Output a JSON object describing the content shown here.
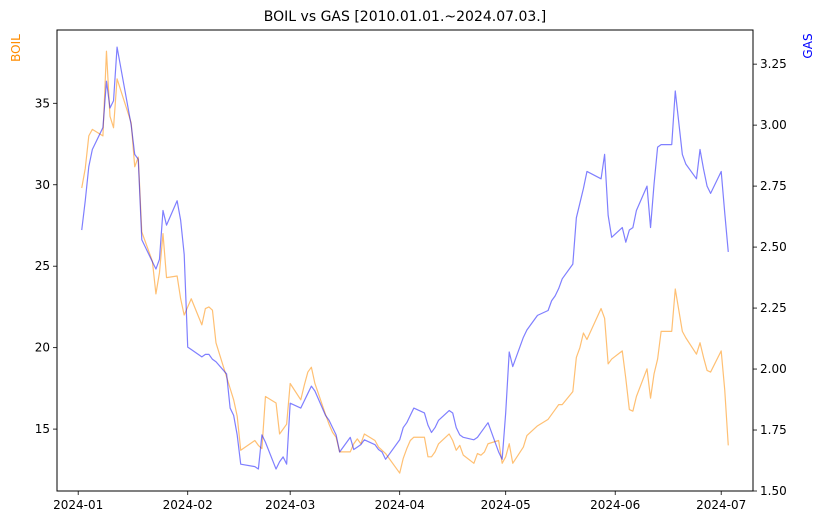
{
  "chart_data": {
    "type": "line",
    "title": "BOIL vs GAS [2010.01.01.~2024.07.03.]",
    "xlabel": "",
    "x_ticks": [
      "2024-01",
      "2024-02",
      "2024-03",
      "2024-04",
      "2024-05",
      "2024-06",
      "2024-07"
    ],
    "left_axis": {
      "label": "BOIL",
      "color": "#ff8c00",
      "ylim": [
        11.2,
        39.5
      ],
      "ticks": [
        15,
        20,
        25,
        30,
        35
      ]
    },
    "right_axis": {
      "label": "GAS",
      "color": "#0000ff",
      "ylim": [
        1.5,
        3.39
      ],
      "ticks": [
        "1.50",
        "1.75",
        "2.00",
        "2.25",
        "2.50",
        "2.75",
        "3.00",
        "3.25"
      ]
    },
    "legend": "none",
    "grid": false,
    "series": [
      {
        "name": "BOIL",
        "axis": "left",
        "color": "#ff8c00",
        "points": [
          [
            "2024-01-02",
            29.8
          ],
          [
            "2024-01-03",
            31.0
          ],
          [
            "2024-01-04",
            33.0
          ],
          [
            "2024-01-05",
            33.4
          ],
          [
            "2024-01-08",
            33.0
          ],
          [
            "2024-01-09",
            38.2
          ],
          [
            "2024-01-10",
            34.2
          ],
          [
            "2024-01-11",
            33.5
          ],
          [
            "2024-01-12",
            36.5
          ],
          [
            "2024-01-16",
            33.8
          ],
          [
            "2024-01-17",
            31.1
          ],
          [
            "2024-01-18",
            31.7
          ],
          [
            "2024-01-19",
            27.1
          ],
          [
            "2024-01-22",
            25.3
          ],
          [
            "2024-01-23",
            23.3
          ],
          [
            "2024-01-24",
            24.6
          ],
          [
            "2024-01-25",
            27.0
          ],
          [
            "2024-01-26",
            24.3
          ],
          [
            "2024-01-29",
            24.4
          ],
          [
            "2024-01-30",
            23.0
          ],
          [
            "2024-01-31",
            22.0
          ],
          [
            "2024-02-01",
            22.5
          ],
          [
            "2024-02-02",
            23.0
          ],
          [
            "2024-02-05",
            21.4
          ],
          [
            "2024-02-06",
            22.4
          ],
          [
            "2024-02-07",
            22.5
          ],
          [
            "2024-02-08",
            22.3
          ],
          [
            "2024-02-09",
            20.3
          ],
          [
            "2024-02-12",
            18.2
          ],
          [
            "2024-02-13",
            17.5
          ],
          [
            "2024-02-14",
            16.8
          ],
          [
            "2024-02-15",
            15.8
          ],
          [
            "2024-02-16",
            13.7
          ],
          [
            "2024-02-20",
            14.3
          ],
          [
            "2024-02-21",
            14.0
          ],
          [
            "2024-02-22",
            13.8
          ],
          [
            "2024-02-23",
            17.0
          ],
          [
            "2024-02-26",
            16.6
          ],
          [
            "2024-02-27",
            14.7
          ],
          [
            "2024-02-28",
            15.0
          ],
          [
            "2024-02-29",
            15.3
          ],
          [
            "2024-03-01",
            17.8
          ],
          [
            "2024-03-04",
            16.8
          ],
          [
            "2024-03-05",
            17.7
          ],
          [
            "2024-03-06",
            18.5
          ],
          [
            "2024-03-07",
            18.8
          ],
          [
            "2024-03-08",
            17.8
          ],
          [
            "2024-03-11",
            15.9
          ],
          [
            "2024-03-12",
            15.3
          ],
          [
            "2024-03-13",
            14.8
          ],
          [
            "2024-03-14",
            14.5
          ],
          [
            "2024-03-15",
            13.6
          ],
          [
            "2024-03-18",
            13.6
          ],
          [
            "2024-03-19",
            14.1
          ],
          [
            "2024-03-20",
            14.4
          ],
          [
            "2024-03-21",
            14.1
          ],
          [
            "2024-03-22",
            14.7
          ],
          [
            "2024-03-25",
            14.3
          ],
          [
            "2024-03-26",
            13.9
          ],
          [
            "2024-03-27",
            13.7
          ],
          [
            "2024-03-28",
            13.5
          ],
          [
            "2024-04-01",
            12.3
          ],
          [
            "2024-04-02",
            13.2
          ],
          [
            "2024-04-03",
            13.8
          ],
          [
            "2024-04-04",
            14.3
          ],
          [
            "2024-04-05",
            14.5
          ],
          [
            "2024-04-08",
            14.5
          ],
          [
            "2024-04-09",
            13.3
          ],
          [
            "2024-04-10",
            13.3
          ],
          [
            "2024-04-11",
            13.6
          ],
          [
            "2024-04-12",
            14.1
          ],
          [
            "2024-04-15",
            14.7
          ],
          [
            "2024-04-16",
            14.3
          ],
          [
            "2024-04-17",
            13.7
          ],
          [
            "2024-04-18",
            14.0
          ],
          [
            "2024-04-19",
            13.4
          ],
          [
            "2024-04-22",
            12.9
          ],
          [
            "2024-04-23",
            13.5
          ],
          [
            "2024-04-24",
            13.4
          ],
          [
            "2024-04-25",
            13.6
          ],
          [
            "2024-04-26",
            14.1
          ],
          [
            "2024-04-29",
            14.3
          ],
          [
            "2024-04-30",
            12.9
          ],
          [
            "2024-05-01",
            13.3
          ],
          [
            "2024-05-02",
            14.1
          ],
          [
            "2024-05-03",
            12.9
          ],
          [
            "2024-05-06",
            13.9
          ],
          [
            "2024-05-07",
            14.6
          ],
          [
            "2024-05-08",
            14.8
          ],
          [
            "2024-05-09",
            15.0
          ],
          [
            "2024-05-10",
            15.2
          ],
          [
            "2024-05-13",
            15.6
          ],
          [
            "2024-05-14",
            15.9
          ],
          [
            "2024-05-15",
            16.2
          ],
          [
            "2024-05-16",
            16.5
          ],
          [
            "2024-05-17",
            16.5
          ],
          [
            "2024-05-20",
            17.3
          ],
          [
            "2024-05-21",
            19.4
          ],
          [
            "2024-05-22",
            20.0
          ],
          [
            "2024-05-23",
            20.9
          ],
          [
            "2024-05-24",
            20.5
          ],
          [
            "2024-05-28",
            22.4
          ],
          [
            "2024-05-29",
            21.8
          ],
          [
            "2024-05-30",
            19.0
          ],
          [
            "2024-05-31",
            19.3
          ],
          [
            "2024-06-03",
            19.8
          ],
          [
            "2024-06-04",
            18.1
          ],
          [
            "2024-06-05",
            16.2
          ],
          [
            "2024-06-06",
            16.1
          ],
          [
            "2024-06-07",
            17.0
          ],
          [
            "2024-06-10",
            18.7
          ],
          [
            "2024-06-11",
            16.9
          ],
          [
            "2024-06-12",
            18.4
          ],
          [
            "2024-06-13",
            19.3
          ],
          [
            "2024-06-14",
            21.0
          ],
          [
            "2024-06-17",
            21.0
          ],
          [
            "2024-06-18",
            23.6
          ],
          [
            "2024-06-20",
            21.0
          ],
          [
            "2024-06-21",
            20.6
          ],
          [
            "2024-06-24",
            19.6
          ],
          [
            "2024-06-25",
            20.3
          ],
          [
            "2024-06-26",
            19.4
          ],
          [
            "2024-06-27",
            18.6
          ],
          [
            "2024-06-28",
            18.5
          ],
          [
            "2024-07-01",
            19.8
          ],
          [
            "2024-07-02",
            17.4
          ],
          [
            "2024-07-03",
            14.0
          ]
        ]
      },
      {
        "name": "GAS",
        "axis": "right",
        "color": "#0000ff",
        "points": [
          [
            "2024-01-02",
            2.57
          ],
          [
            "2024-01-03",
            2.69
          ],
          [
            "2024-01-04",
            2.83
          ],
          [
            "2024-01-05",
            2.9
          ],
          [
            "2024-01-08",
            2.99
          ],
          [
            "2024-01-09",
            3.18
          ],
          [
            "2024-01-10",
            3.07
          ],
          [
            "2024-01-11",
            3.1
          ],
          [
            "2024-01-12",
            3.32
          ],
          [
            "2024-01-16",
            3.0
          ],
          [
            "2024-01-17",
            2.88
          ],
          [
            "2024-01-18",
            2.86
          ],
          [
            "2024-01-19",
            2.53
          ],
          [
            "2024-01-22",
            2.44
          ],
          [
            "2024-01-23",
            2.41
          ],
          [
            "2024-01-24",
            2.45
          ],
          [
            "2024-01-25",
            2.65
          ],
          [
            "2024-01-26",
            2.59
          ],
          [
            "2024-01-29",
            2.69
          ],
          [
            "2024-01-30",
            2.61
          ],
          [
            "2024-01-31",
            2.47
          ],
          [
            "2024-02-01",
            2.09
          ],
          [
            "2024-02-02",
            2.08
          ],
          [
            "2024-02-05",
            2.05
          ],
          [
            "2024-02-06",
            2.06
          ],
          [
            "2024-02-07",
            2.06
          ],
          [
            "2024-02-08",
            2.04
          ],
          [
            "2024-02-09",
            2.03
          ],
          [
            "2024-02-12",
            1.98
          ],
          [
            "2024-02-13",
            1.84
          ],
          [
            "2024-02-14",
            1.81
          ],
          [
            "2024-02-15",
            1.73
          ],
          [
            "2024-02-16",
            1.61
          ],
          [
            "2024-02-20",
            1.6
          ],
          [
            "2024-02-21",
            1.59
          ],
          [
            "2024-02-22",
            1.73
          ],
          [
            "2024-02-23",
            1.7
          ],
          [
            "2024-02-26",
            1.59
          ],
          [
            "2024-02-27",
            1.62
          ],
          [
            "2024-02-28",
            1.64
          ],
          [
            "2024-02-29",
            1.61
          ],
          [
            "2024-03-01",
            1.86
          ],
          [
            "2024-03-04",
            1.84
          ],
          [
            "2024-03-05",
            1.87
          ],
          [
            "2024-03-06",
            1.9
          ],
          [
            "2024-03-07",
            1.93
          ],
          [
            "2024-03-08",
            1.91
          ],
          [
            "2024-03-11",
            1.81
          ],
          [
            "2024-03-12",
            1.79
          ],
          [
            "2024-03-13",
            1.76
          ],
          [
            "2024-03-14",
            1.73
          ],
          [
            "2024-03-15",
            1.66
          ],
          [
            "2024-03-18",
            1.72
          ],
          [
            "2024-03-19",
            1.67
          ],
          [
            "2024-03-20",
            1.68
          ],
          [
            "2024-03-21",
            1.69
          ],
          [
            "2024-03-22",
            1.71
          ],
          [
            "2024-03-25",
            1.69
          ],
          [
            "2024-03-26",
            1.67
          ],
          [
            "2024-03-27",
            1.66
          ],
          [
            "2024-03-28",
            1.63
          ],
          [
            "2024-04-01",
            1.71
          ],
          [
            "2024-04-02",
            1.76
          ],
          [
            "2024-04-03",
            1.78
          ],
          [
            "2024-04-04",
            1.81
          ],
          [
            "2024-04-05",
            1.84
          ],
          [
            "2024-04-08",
            1.82
          ],
          [
            "2024-04-09",
            1.77
          ],
          [
            "2024-04-10",
            1.74
          ],
          [
            "2024-04-11",
            1.76
          ],
          [
            "2024-04-12",
            1.79
          ],
          [
            "2024-04-15",
            1.83
          ],
          [
            "2024-04-16",
            1.82
          ],
          [
            "2024-04-17",
            1.76
          ],
          [
            "2024-04-18",
            1.73
          ],
          [
            "2024-04-19",
            1.72
          ],
          [
            "2024-04-22",
            1.71
          ],
          [
            "2024-04-23",
            1.72
          ],
          [
            "2024-04-24",
            1.74
          ],
          [
            "2024-04-25",
            1.76
          ],
          [
            "2024-04-26",
            1.78
          ],
          [
            "2024-04-29",
            1.66
          ],
          [
            "2024-04-30",
            1.63
          ],
          [
            "2024-05-01",
            1.82
          ],
          [
            "2024-05-02",
            2.07
          ],
          [
            "2024-05-03",
            2.01
          ],
          [
            "2024-05-06",
            2.13
          ],
          [
            "2024-05-07",
            2.16
          ],
          [
            "2024-05-08",
            2.18
          ],
          [
            "2024-05-09",
            2.2
          ],
          [
            "2024-05-10",
            2.22
          ],
          [
            "2024-05-13",
            2.24
          ],
          [
            "2024-05-14",
            2.28
          ],
          [
            "2024-05-15",
            2.3
          ],
          [
            "2024-05-16",
            2.33
          ],
          [
            "2024-05-17",
            2.37
          ],
          [
            "2024-05-20",
            2.43
          ],
          [
            "2024-05-21",
            2.62
          ],
          [
            "2024-05-22",
            2.68
          ],
          [
            "2024-05-23",
            2.74
          ],
          [
            "2024-05-24",
            2.81
          ],
          [
            "2024-05-28",
            2.78
          ],
          [
            "2024-05-29",
            2.88
          ],
          [
            "2024-05-30",
            2.63
          ],
          [
            "2024-05-31",
            2.54
          ],
          [
            "2024-06-03",
            2.58
          ],
          [
            "2024-06-04",
            2.52
          ],
          [
            "2024-06-05",
            2.57
          ],
          [
            "2024-06-06",
            2.58
          ],
          [
            "2024-06-07",
            2.65
          ],
          [
            "2024-06-10",
            2.75
          ],
          [
            "2024-06-11",
            2.58
          ],
          [
            "2024-06-12",
            2.76
          ],
          [
            "2024-06-13",
            2.91
          ],
          [
            "2024-06-14",
            2.92
          ],
          [
            "2024-06-17",
            2.92
          ],
          [
            "2024-06-18",
            3.14
          ],
          [
            "2024-06-20",
            2.88
          ],
          [
            "2024-06-21",
            2.84
          ],
          [
            "2024-06-24",
            2.78
          ],
          [
            "2024-06-25",
            2.9
          ],
          [
            "2024-06-26",
            2.82
          ],
          [
            "2024-06-27",
            2.75
          ],
          [
            "2024-06-28",
            2.72
          ],
          [
            "2024-07-01",
            2.81
          ],
          [
            "2024-07-02",
            2.64
          ],
          [
            "2024-07-03",
            2.48
          ]
        ]
      }
    ]
  }
}
